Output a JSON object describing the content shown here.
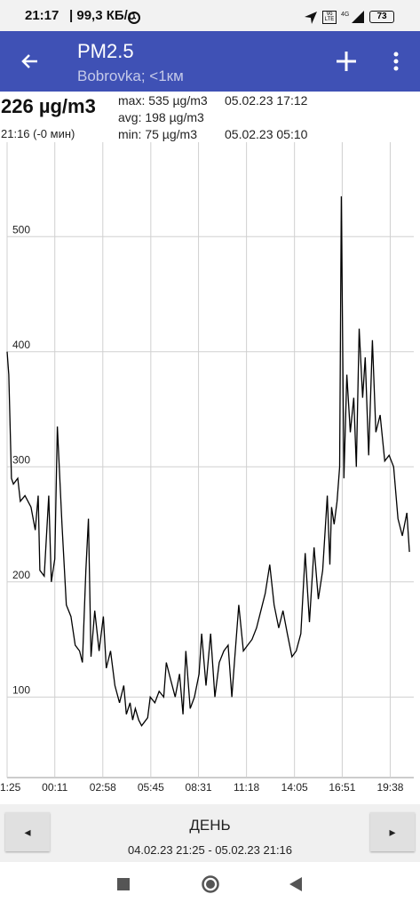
{
  "status_bar": {
    "time": "21:17",
    "speed": "| 99,3 КБ/с",
    "battery": "73"
  },
  "app_bar": {
    "title": "PM2.5",
    "subtitle": "Bobrovka; <1км"
  },
  "info": {
    "current": "226 µg/m3",
    "time": "21:16 (-0 мин)",
    "max": "max: 535 µg/m3",
    "max_time": "05.02.23 17:12",
    "avg": "avg: 198 µg/m3",
    "min": "min: 75 µg/m3",
    "min_time": "05.02.23 05:10"
  },
  "chart_data": {
    "type": "line",
    "color": "#000000",
    "grid": true,
    "x": [
      1285,
      1291,
      1300,
      1307,
      1322,
      1331,
      1347,
      1368,
      1383,
      1393,
      1399,
      1414,
      1430,
      1439,
      1451,
      1460,
      1476,
      1491,
      1507,
      1522,
      1537,
      1547,
      1559,
      1568,
      1577,
      1590,
      1605,
      1620,
      1630,
      1645,
      1660,
      1676,
      1691,
      1700,
      1713,
      1722,
      1731,
      1743,
      1753,
      1762,
      1774,
      1783,
      1799,
      1814,
      1830,
      1839,
      1854,
      1870,
      1885,
      1897,
      1907,
      1922,
      1937,
      1953,
      1962,
      1977,
      1993,
      2008,
      2023,
      2039,
      2054,
      2067,
      2076,
      2091,
      2107,
      2122,
      2137,
      2153,
      2168,
      2183,
      2199,
      2214,
      2230,
      2245,
      2260,
      2276,
      2291,
      2307,
      2322,
      2337,
      2353,
      2368,
      2383,
      2399,
      2408,
      2414,
      2423,
      2433,
      2442,
      2448,
      2457,
      2467,
      2479,
      2491,
      2500,
      2510,
      2522,
      2531,
      2543,
      2556,
      2568,
      2583,
      2599,
      2614,
      2630,
      2645,
      2660,
      2676,
      2685
    ],
    "values": [
      400,
      380,
      290,
      285,
      290,
      270,
      275,
      265,
      245,
      275,
      210,
      205,
      275,
      200,
      220,
      335,
      250,
      180,
      170,
      145,
      140,
      130,
      210,
      255,
      135,
      175,
      140,
      170,
      125,
      140,
      110,
      95,
      110,
      85,
      95,
      80,
      90,
      80,
      75,
      78,
      82,
      100,
      95,
      105,
      100,
      130,
      115,
      100,
      120,
      85,
      140,
      90,
      100,
      120,
      155,
      110,
      155,
      100,
      130,
      140,
      145,
      100,
      130,
      180,
      140,
      145,
      150,
      160,
      175,
      190,
      215,
      180,
      160,
      175,
      155,
      135,
      140,
      155,
      225,
      165,
      230,
      185,
      210,
      275,
      215,
      265,
      250,
      270,
      300,
      535,
      290,
      380,
      330,
      360,
      300,
      420,
      360,
      395,
      310,
      410,
      330,
      345,
      305,
      310,
      300,
      255,
      240,
      260,
      226
    ],
    "xlim": [
      1285,
      2700
    ],
    "xticks": [
      {
        "value": 1285,
        "label": "1:25"
      },
      {
        "value": 1451,
        "label": "00:11"
      },
      {
        "value": 1618,
        "label": "02:58"
      },
      {
        "value": 1785,
        "label": "05:45"
      },
      {
        "value": 1951,
        "label": "08:31"
      },
      {
        "value": 2118,
        "label": "11:18"
      },
      {
        "value": 2285,
        "label": "14:05"
      },
      {
        "value": 2451,
        "label": "16:51"
      },
      {
        "value": 2618,
        "label": "19:38"
      }
    ],
    "ylim": [
      30,
      582
    ],
    "yticks": [
      100,
      200,
      300,
      400,
      500
    ]
  },
  "footer": {
    "period": "ДЕНЬ",
    "range": "04.02.23 21:25 - 05.02.23 21:16"
  }
}
